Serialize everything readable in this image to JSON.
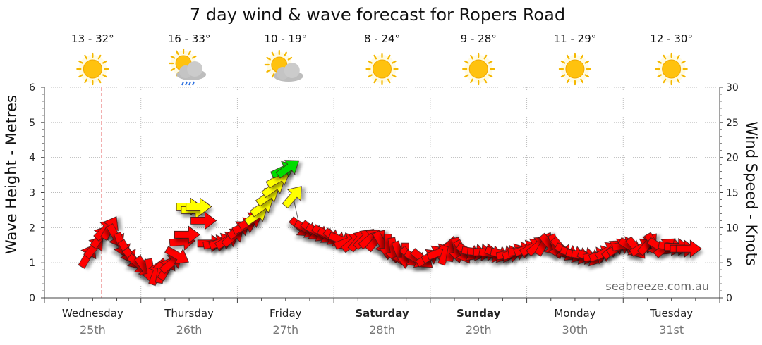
{
  "chart_data": {
    "type": "line",
    "title": "7 day wind & wave forecast for Ropers Road",
    "ylabel_left": "Wave Height - Metres",
    "ylabel_right": "Wind Speed - Knots",
    "ylim_left": [
      0,
      6
    ],
    "ylim_right": [
      0,
      30
    ],
    "yticks_left": [
      "0",
      "1",
      "2",
      "3",
      "4",
      "5",
      "6"
    ],
    "yticks_right": [
      "0",
      "5",
      "10",
      "15",
      "20",
      "25",
      "30"
    ],
    "watermark": "seabreeze.com.au",
    "days": [
      {
        "name": "Wednesday",
        "date": "25th",
        "temp": "13 - 32°",
        "icon": "sun-icon",
        "bold": false
      },
      {
        "name": "Thursday",
        "date": "26th",
        "temp": "16 - 33°",
        "icon": "sun-cloud-rain-icon",
        "bold": false
      },
      {
        "name": "Friday",
        "date": "27th",
        "temp": "10 - 19°",
        "icon": "sun-cloud-icon",
        "bold": false
      },
      {
        "name": "Saturday",
        "date": "28th",
        "temp": "8 - 24°",
        "icon": "sun-icon",
        "bold": true
      },
      {
        "name": "Sunday",
        "date": "29th",
        "temp": "9 - 28°",
        "icon": "sun-icon",
        "bold": true
      },
      {
        "name": "Monday",
        "date": "30th",
        "temp": "11 - 29°",
        "icon": "sun-icon",
        "bold": false
      },
      {
        "name": "Tuesday",
        "date": "31st",
        "temp": "12 - 30°",
        "icon": "sun-icon",
        "bold": false
      }
    ],
    "colors": {
      "light": "#ff0000",
      "moderate": "#ffff00",
      "fresh": "#00dd00",
      "grid": "#bbbbbb",
      "now_line": "#f0a0a0"
    },
    "series": [
      {
        "name": "Wave Height",
        "points_days_m": [
          [
            0.45,
            1.3
          ],
          [
            0.55,
            1.6
          ],
          [
            0.62,
            1.9
          ],
          [
            0.68,
            2.0
          ],
          [
            0.72,
            1.9
          ],
          [
            0.8,
            1.6
          ],
          [
            0.85,
            1.4
          ],
          [
            0.9,
            1.2
          ],
          [
            0.95,
            1.05
          ],
          [
            1.0,
            0.9
          ],
          [
            1.05,
            0.8
          ],
          [
            1.1,
            0.75
          ],
          [
            1.15,
            0.78
          ],
          [
            1.2,
            0.9
          ],
          [
            1.25,
            1.1
          ],
          [
            1.3,
            1.3
          ],
          [
            1.35,
            1.55
          ],
          [
            1.4,
            1.8
          ],
          [
            1.45,
            2.0
          ],
          [
            1.55,
            2.1
          ],
          [
            1.65,
            2.0
          ],
          [
            1.7,
            1.7
          ],
          [
            1.75,
            1.55
          ],
          [
            1.85,
            1.6
          ],
          [
            1.95,
            1.75
          ],
          [
            2.05,
            1.95
          ],
          [
            2.12,
            2.15
          ],
          [
            2.2,
            2.4
          ],
          [
            2.27,
            2.7
          ],
          [
            2.32,
            2.95
          ],
          [
            2.38,
            3.25
          ],
          [
            2.43,
            3.5
          ],
          [
            2.48,
            3.7
          ],
          [
            2.55,
            3.8
          ],
          [
            2.6,
            3.2
          ],
          [
            2.65,
            2.45
          ],
          [
            2.72,
            2.0
          ],
          [
            2.8,
            1.9
          ],
          [
            2.9,
            1.8
          ],
          [
            3.0,
            1.75
          ],
          [
            3.1,
            1.65
          ],
          [
            3.2,
            1.6
          ],
          [
            3.3,
            1.65
          ],
          [
            3.4,
            1.7
          ],
          [
            3.5,
            1.6
          ],
          [
            3.6,
            1.5
          ],
          [
            3.7,
            1.3
          ],
          [
            3.8,
            1.2
          ],
          [
            3.9,
            1.15
          ],
          [
            4.0,
            1.1
          ],
          [
            4.1,
            1.15
          ],
          [
            4.2,
            1.2
          ],
          [
            4.3,
            1.25
          ],
          [
            4.4,
            1.3
          ],
          [
            4.5,
            1.3
          ],
          [
            4.6,
            1.3
          ],
          [
            4.7,
            1.25
          ],
          [
            4.8,
            1.25
          ],
          [
            4.9,
            1.3
          ],
          [
            5.0,
            1.35
          ],
          [
            5.1,
            1.45
          ],
          [
            5.2,
            1.55
          ],
          [
            5.3,
            1.5
          ],
          [
            5.4,
            1.35
          ],
          [
            5.5,
            1.25
          ],
          [
            5.6,
            1.2
          ],
          [
            5.7,
            1.15
          ],
          [
            5.8,
            1.2
          ],
          [
            5.9,
            1.35
          ],
          [
            6.0,
            1.45
          ],
          [
            6.1,
            1.45
          ],
          [
            6.2,
            1.4
          ],
          [
            6.3,
            1.45
          ],
          [
            6.4,
            1.5
          ],
          [
            6.5,
            1.45
          ],
          [
            6.6,
            1.4
          ],
          [
            6.7,
            1.4
          ]
        ]
      },
      {
        "name": "Wind Speed",
        "points_days_kn": [
          [
            0.45,
            7
          ],
          [
            0.6,
            9
          ],
          [
            0.75,
            6
          ],
          [
            0.9,
            4
          ],
          [
            1.05,
            3
          ],
          [
            1.2,
            3
          ],
          [
            1.35,
            8
          ],
          [
            1.5,
            12
          ],
          [
            1.65,
            14
          ],
          [
            1.8,
            9
          ],
          [
            1.95,
            10
          ],
          [
            2.1,
            13
          ],
          [
            2.25,
            16
          ],
          [
            2.4,
            19
          ],
          [
            2.5,
            20
          ],
          [
            2.62,
            15
          ],
          [
            2.75,
            10
          ],
          [
            2.9,
            9
          ],
          [
            3.05,
            9
          ],
          [
            3.2,
            8
          ],
          [
            3.4,
            8
          ],
          [
            3.6,
            7
          ],
          [
            3.8,
            6
          ],
          [
            4.0,
            5
          ],
          [
            4.2,
            6
          ],
          [
            4.4,
            6
          ],
          [
            4.6,
            6
          ],
          [
            4.8,
            6
          ],
          [
            5.0,
            7
          ],
          [
            5.2,
            8
          ],
          [
            5.4,
            7
          ],
          [
            5.6,
            6
          ],
          [
            5.8,
            6
          ],
          [
            6.0,
            7
          ],
          [
            6.2,
            7
          ],
          [
            6.4,
            7
          ],
          [
            6.6,
            7
          ],
          [
            6.7,
            7
          ]
        ]
      }
    ],
    "wind_arrows": [
      {
        "t": 0.45,
        "h": 1.2,
        "d": -60,
        "c": "light"
      },
      {
        "t": 0.52,
        "h": 1.45,
        "d": -50,
        "c": "light"
      },
      {
        "t": 0.58,
        "h": 1.75,
        "d": -55,
        "c": "light"
      },
      {
        "t": 0.63,
        "h": 1.95,
        "d": -45,
        "c": "light"
      },
      {
        "t": 0.68,
        "h": 2.0,
        "d": -60,
        "c": "light"
      },
      {
        "t": 0.74,
        "h": 1.75,
        "d": 60,
        "c": "light"
      },
      {
        "t": 0.8,
        "h": 1.5,
        "d": 70,
        "c": "light"
      },
      {
        "t": 0.86,
        "h": 1.3,
        "d": 60,
        "c": "light"
      },
      {
        "t": 0.92,
        "h": 1.1,
        "d": 50,
        "c": "light"
      },
      {
        "t": 0.98,
        "h": 0.95,
        "d": 40,
        "c": "light"
      },
      {
        "t": 1.04,
        "h": 0.85,
        "d": 55,
        "c": "light"
      },
      {
        "t": 1.1,
        "h": 0.75,
        "d": 80,
        "c": "light"
      },
      {
        "t": 1.16,
        "h": 0.72,
        "d": -70,
        "c": "light"
      },
      {
        "t": 1.21,
        "h": 0.78,
        "d": -80,
        "c": "light"
      },
      {
        "t": 1.27,
        "h": 0.85,
        "d": -60,
        "c": "light"
      },
      {
        "t": 1.32,
        "h": 1.0,
        "d": -40,
        "c": "light"
      },
      {
        "t": 1.38,
        "h": 1.2,
        "d": 30,
        "c": "light"
      },
      {
        "t": 1.43,
        "h": 1.6,
        "d": -5,
        "c": "light"
      },
      {
        "t": 1.48,
        "h": 1.8,
        "d": 0,
        "c": "light"
      },
      {
        "t": 1.5,
        "h": 2.6,
        "d": 0,
        "c": "moderate"
      },
      {
        "t": 1.55,
        "h": 2.5,
        "d": 0,
        "c": "moderate"
      },
      {
        "t": 1.6,
        "h": 2.6,
        "d": 0,
        "c": "moderate"
      },
      {
        "t": 1.65,
        "h": 2.2,
        "d": 0,
        "c": "light"
      },
      {
        "t": 1.72,
        "h": 1.55,
        "d": 0,
        "c": "light"
      },
      {
        "t": 1.78,
        "h": 1.55,
        "d": -10,
        "c": "light"
      },
      {
        "t": 1.84,
        "h": 1.6,
        "d": -20,
        "c": "light"
      },
      {
        "t": 1.9,
        "h": 1.65,
        "d": -30,
        "c": "light"
      },
      {
        "t": 1.96,
        "h": 1.75,
        "d": -40,
        "c": "light"
      },
      {
        "t": 2.02,
        "h": 1.95,
        "d": -35,
        "c": "light"
      },
      {
        "t": 2.08,
        "h": 2.05,
        "d": -25,
        "c": "light"
      },
      {
        "t": 2.14,
        "h": 2.2,
        "d": -30,
        "c": "light"
      },
      {
        "t": 2.2,
        "h": 2.35,
        "d": -35,
        "c": "moderate"
      },
      {
        "t": 2.26,
        "h": 2.6,
        "d": -35,
        "c": "moderate"
      },
      {
        "t": 2.32,
        "h": 2.9,
        "d": -35,
        "c": "moderate"
      },
      {
        "t": 2.38,
        "h": 3.15,
        "d": -35,
        "c": "moderate"
      },
      {
        "t": 2.43,
        "h": 3.4,
        "d": -30,
        "c": "moderate"
      },
      {
        "t": 2.48,
        "h": 3.65,
        "d": -25,
        "c": "fresh"
      },
      {
        "t": 2.53,
        "h": 3.7,
        "d": -35,
        "c": "fresh"
      },
      {
        "t": 2.58,
        "h": 2.9,
        "d": -50,
        "c": "moderate"
      },
      {
        "t": 2.66,
        "h": 2.0,
        "d": 40,
        "c": "light"
      },
      {
        "t": 2.72,
        "h": 1.95,
        "d": 30,
        "c": "light"
      },
      {
        "t": 2.78,
        "h": 1.9,
        "d": 40,
        "c": "light"
      },
      {
        "t": 2.84,
        "h": 1.85,
        "d": 30,
        "c": "light"
      },
      {
        "t": 2.9,
        "h": 1.8,
        "d": 35,
        "c": "light"
      },
      {
        "t": 2.96,
        "h": 1.75,
        "d": 30,
        "c": "light"
      },
      {
        "t": 3.02,
        "h": 1.7,
        "d": 35,
        "c": "light"
      },
      {
        "t": 3.08,
        "h": 1.65,
        "d": 20,
        "c": "light"
      },
      {
        "t": 3.14,
        "h": 1.6,
        "d": -20,
        "c": "light"
      },
      {
        "t": 3.2,
        "h": 1.6,
        "d": -40,
        "c": "light"
      },
      {
        "t": 3.26,
        "h": 1.65,
        "d": -50,
        "c": "light"
      },
      {
        "t": 3.32,
        "h": 1.7,
        "d": -45,
        "c": "light"
      },
      {
        "t": 3.38,
        "h": 1.7,
        "d": -40,
        "c": "light"
      },
      {
        "t": 3.44,
        "h": 1.65,
        "d": -50,
        "c": "light"
      },
      {
        "t": 3.5,
        "h": 1.55,
        "d": 60,
        "c": "light"
      },
      {
        "t": 3.56,
        "h": 1.45,
        "d": 90,
        "c": "light"
      },
      {
        "t": 3.62,
        "h": 1.35,
        "d": 80,
        "c": "light"
      },
      {
        "t": 3.68,
        "h": 1.25,
        "d": 70,
        "c": "light"
      },
      {
        "t": 3.74,
        "h": 1.2,
        "d": 90,
        "c": "light"
      },
      {
        "t": 3.8,
        "h": 1.15,
        "d": 45,
        "c": "light"
      },
      {
        "t": 3.86,
        "h": 1.1,
        "d": 30,
        "c": "light"
      },
      {
        "t": 3.92,
        "h": 1.1,
        "d": 40,
        "c": "light"
      },
      {
        "t": 3.98,
        "h": 1.15,
        "d": -30,
        "c": "light"
      },
      {
        "t": 4.04,
        "h": 1.25,
        "d": -30,
        "c": "light"
      },
      {
        "t": 4.1,
        "h": 1.3,
        "d": -20,
        "c": "light"
      },
      {
        "t": 4.16,
        "h": 1.3,
        "d": -70,
        "c": "light"
      },
      {
        "t": 4.22,
        "h": 1.4,
        "d": -80,
        "c": "light"
      },
      {
        "t": 4.28,
        "h": 1.35,
        "d": 80,
        "c": "light"
      },
      {
        "t": 4.34,
        "h": 1.3,
        "d": 60,
        "c": "light"
      },
      {
        "t": 4.4,
        "h": 1.3,
        "d": 30,
        "c": "light"
      },
      {
        "t": 4.46,
        "h": 1.3,
        "d": 10,
        "c": "light"
      },
      {
        "t": 4.52,
        "h": 1.3,
        "d": 5,
        "c": "light"
      },
      {
        "t": 4.58,
        "h": 1.3,
        "d": 0,
        "c": "light"
      },
      {
        "t": 4.64,
        "h": 1.25,
        "d": 10,
        "c": "light"
      },
      {
        "t": 4.7,
        "h": 1.25,
        "d": 20,
        "c": "light"
      },
      {
        "t": 4.76,
        "h": 1.25,
        "d": 10,
        "c": "light"
      },
      {
        "t": 4.82,
        "h": 1.25,
        "d": -10,
        "c": "light"
      },
      {
        "t": 4.88,
        "h": 1.3,
        "d": -20,
        "c": "light"
      },
      {
        "t": 4.94,
        "h": 1.35,
        "d": -10,
        "c": "light"
      },
      {
        "t": 5.0,
        "h": 1.4,
        "d": -20,
        "c": "light"
      },
      {
        "t": 5.06,
        "h": 1.45,
        "d": -30,
        "c": "light"
      },
      {
        "t": 5.12,
        "h": 1.5,
        "d": -40,
        "c": "light"
      },
      {
        "t": 5.18,
        "h": 1.55,
        "d": -60,
        "c": "light"
      },
      {
        "t": 5.24,
        "h": 1.5,
        "d": 50,
        "c": "light"
      },
      {
        "t": 5.3,
        "h": 1.45,
        "d": 70,
        "c": "light"
      },
      {
        "t": 5.36,
        "h": 1.4,
        "d": 50,
        "c": "light"
      },
      {
        "t": 5.42,
        "h": 1.3,
        "d": 30,
        "c": "light"
      },
      {
        "t": 5.48,
        "h": 1.25,
        "d": 20,
        "c": "light"
      },
      {
        "t": 5.54,
        "h": 1.2,
        "d": 15,
        "c": "light"
      },
      {
        "t": 5.6,
        "h": 1.2,
        "d": 10,
        "c": "light"
      },
      {
        "t": 5.66,
        "h": 1.15,
        "d": 20,
        "c": "light"
      },
      {
        "t": 5.72,
        "h": 1.2,
        "d": -10,
        "c": "light"
      },
      {
        "t": 5.78,
        "h": 1.25,
        "d": -20,
        "c": "light"
      },
      {
        "t": 5.84,
        "h": 1.35,
        "d": -30,
        "c": "light"
      },
      {
        "t": 5.9,
        "h": 1.4,
        "d": -40,
        "c": "light"
      },
      {
        "t": 5.96,
        "h": 1.45,
        "d": -30,
        "c": "light"
      },
      {
        "t": 6.02,
        "h": 1.5,
        "d": -10,
        "c": "light"
      },
      {
        "t": 6.08,
        "h": 1.45,
        "d": 30,
        "c": "light"
      },
      {
        "t": 6.14,
        "h": 1.4,
        "d": 50,
        "c": "light"
      },
      {
        "t": 6.2,
        "h": 1.45,
        "d": -30,
        "c": "light"
      },
      {
        "t": 6.26,
        "h": 1.55,
        "d": -50,
        "c": "light"
      },
      {
        "t": 6.32,
        "h": 1.5,
        "d": 60,
        "c": "light"
      },
      {
        "t": 6.38,
        "h": 1.45,
        "d": 30,
        "c": "light"
      },
      {
        "t": 6.44,
        "h": 1.45,
        "d": -40,
        "c": "light"
      },
      {
        "t": 6.5,
        "h": 1.45,
        "d": 10,
        "c": "light"
      },
      {
        "t": 6.56,
        "h": 1.45,
        "d": 0,
        "c": "light"
      },
      {
        "t": 6.62,
        "h": 1.4,
        "d": 0,
        "c": "light"
      },
      {
        "t": 6.68,
        "h": 1.4,
        "d": 0,
        "c": "light"
      }
    ]
  }
}
